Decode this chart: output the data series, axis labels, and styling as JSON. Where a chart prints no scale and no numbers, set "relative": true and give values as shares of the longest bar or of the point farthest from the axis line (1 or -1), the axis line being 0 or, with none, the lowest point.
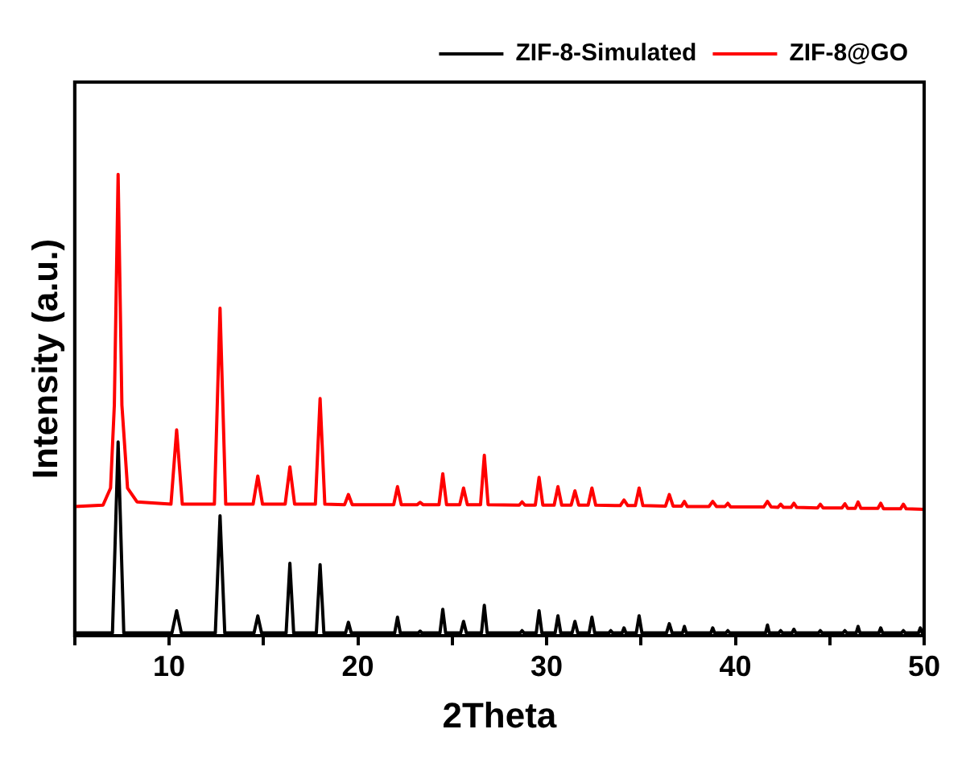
{
  "chart_data": {
    "type": "line",
    "xlabel": "2Theta",
    "ylabel": "Intensity (a.u.)",
    "relative": true,
    "xlim": [
      5,
      50
    ],
    "xticks": [
      {
        "value": 5,
        "label": null
      },
      10,
      {
        "value": 15,
        "label": null
      },
      20,
      {
        "value": 25,
        "label": null
      },
      30,
      {
        "value": 35,
        "label": null
      },
      40,
      {
        "value": 45,
        "label": null
      },
      50
    ],
    "grid": false,
    "legend": "top right",
    "marker": "none",
    "line_style": "solid",
    "series": [
      {
        "name": "ZIF-8-Simulated",
        "color": "#000000",
        "x": [
          5,
          7.0,
          7.3,
          7.6,
          10.15,
          10.4,
          10.65,
          12.45,
          12.7,
          12.95,
          14.5,
          14.7,
          14.9,
          16.2,
          16.4,
          16.6,
          17.8,
          18.0,
          18.2,
          19.35,
          19.5,
          19.65,
          21.95,
          22.1,
          22.25,
          23.2,
          23.3,
          23.4,
          24.35,
          24.5,
          24.65,
          25.45,
          25.6,
          25.75,
          26.55,
          26.7,
          26.85,
          28.6,
          28.7,
          28.8,
          29.45,
          29.6,
          29.75,
          30.45,
          30.6,
          30.75,
          31.35,
          31.5,
          31.65,
          32.25,
          32.4,
          32.55,
          33.3,
          33.4,
          33.5,
          34.0,
          34.1,
          34.2,
          34.75,
          34.9,
          35.05,
          36.35,
          36.5,
          36.65,
          37.2,
          37.3,
          37.4,
          38.7,
          38.8,
          38.9,
          39.5,
          39.6,
          39.7,
          41.6,
          41.7,
          41.8,
          42.3,
          42.4,
          42.5,
          43.0,
          43.1,
          43.2,
          44.4,
          44.5,
          44.6,
          45.7,
          45.8,
          45.9,
          46.4,
          46.5,
          46.6,
          47.6,
          47.7,
          47.8,
          48.8,
          48.9,
          49.0,
          49.7,
          49.8,
          49.9,
          50
        ],
        "values": [
          0.006,
          0.006,
          0.42,
          0.006,
          0.006,
          0.054,
          0.006,
          0.006,
          0.26,
          0.006,
          0.006,
          0.043,
          0.006,
          0.006,
          0.157,
          0.006,
          0.006,
          0.154,
          0.006,
          0.006,
          0.029,
          0.006,
          0.006,
          0.04,
          0.006,
          0.006,
          0.01,
          0.006,
          0.006,
          0.057,
          0.006,
          0.006,
          0.031,
          0.006,
          0.006,
          0.066,
          0.006,
          0.006,
          0.011,
          0.006,
          0.006,
          0.054,
          0.006,
          0.006,
          0.043,
          0.006,
          0.006,
          0.031,
          0.006,
          0.006,
          0.04,
          0.006,
          0.006,
          0.011,
          0.006,
          0.006,
          0.017,
          0.006,
          0.006,
          0.043,
          0.006,
          0.006,
          0.026,
          0.006,
          0.006,
          0.02,
          0.006,
          0.006,
          0.017,
          0.006,
          0.006,
          0.011,
          0.006,
          0.006,
          0.023,
          0.006,
          0.006,
          0.011,
          0.006,
          0.006,
          0.014,
          0.006,
          0.006,
          0.011,
          0.006,
          0.006,
          0.011,
          0.006,
          0.006,
          0.02,
          0.006,
          0.006,
          0.017,
          0.006,
          0.006,
          0.011,
          0.006,
          0.006,
          0.017,
          0.006,
          0.006
        ]
      },
      {
        "name": "ZIF-8@GO",
        "color": "#ff0000",
        "x": [
          5,
          6.5,
          6.9,
          7.1,
          7.3,
          7.5,
          7.8,
          8.3,
          10.1,
          10.4,
          10.7,
          12.4,
          12.7,
          13.0,
          14.45,
          14.7,
          14.95,
          16.15,
          16.4,
          16.65,
          17.75,
          18.0,
          18.25,
          19.3,
          19.5,
          19.7,
          21.9,
          22.1,
          22.3,
          23.15,
          23.3,
          23.45,
          24.3,
          24.5,
          24.7,
          25.4,
          25.6,
          25.8,
          26.5,
          26.7,
          26.9,
          28.55,
          28.7,
          28.85,
          29.4,
          29.6,
          29.8,
          30.4,
          30.6,
          30.8,
          31.3,
          31.5,
          31.7,
          32.2,
          32.4,
          32.6,
          33.9,
          34.1,
          34.3,
          34.7,
          34.9,
          35.1,
          36.3,
          36.5,
          36.7,
          37.15,
          37.3,
          37.45,
          38.6,
          38.8,
          39.0,
          39.45,
          39.6,
          39.75,
          41.5,
          41.7,
          41.9,
          42.25,
          42.4,
          42.55,
          42.95,
          43.1,
          43.25,
          44.35,
          44.5,
          44.65,
          45.65,
          45.8,
          45.95,
          46.35,
          46.5,
          46.65,
          47.55,
          47.7,
          47.85,
          48.75,
          48.9,
          49.05,
          50
        ],
        "values": [
          0.28,
          0.283,
          0.32,
          0.5,
          1,
          0.5,
          0.32,
          0.29,
          0.285,
          0.446,
          0.285,
          0.285,
          0.71,
          0.285,
          0.285,
          0.346,
          0.285,
          0.285,
          0.366,
          0.285,
          0.285,
          0.514,
          0.285,
          0.284,
          0.306,
          0.284,
          0.284,
          0.323,
          0.284,
          0.284,
          0.289,
          0.284,
          0.284,
          0.351,
          0.284,
          0.284,
          0.32,
          0.284,
          0.284,
          0.391,
          0.284,
          0.283,
          0.29,
          0.283,
          0.283,
          0.343,
          0.283,
          0.283,
          0.323,
          0.283,
          0.283,
          0.314,
          0.283,
          0.283,
          0.32,
          0.283,
          0.282,
          0.294,
          0.282,
          0.282,
          0.32,
          0.282,
          0.281,
          0.306,
          0.281,
          0.281,
          0.291,
          0.28,
          0.28,
          0.291,
          0.28,
          0.28,
          0.287,
          0.279,
          0.279,
          0.291,
          0.279,
          0.278,
          0.285,
          0.278,
          0.278,
          0.287,
          0.278,
          0.277,
          0.285,
          0.277,
          0.277,
          0.286,
          0.276,
          0.276,
          0.29,
          0.276,
          0.276,
          0.287,
          0.275,
          0.275,
          0.285,
          0.275,
          0.274
        ]
      }
    ]
  }
}
